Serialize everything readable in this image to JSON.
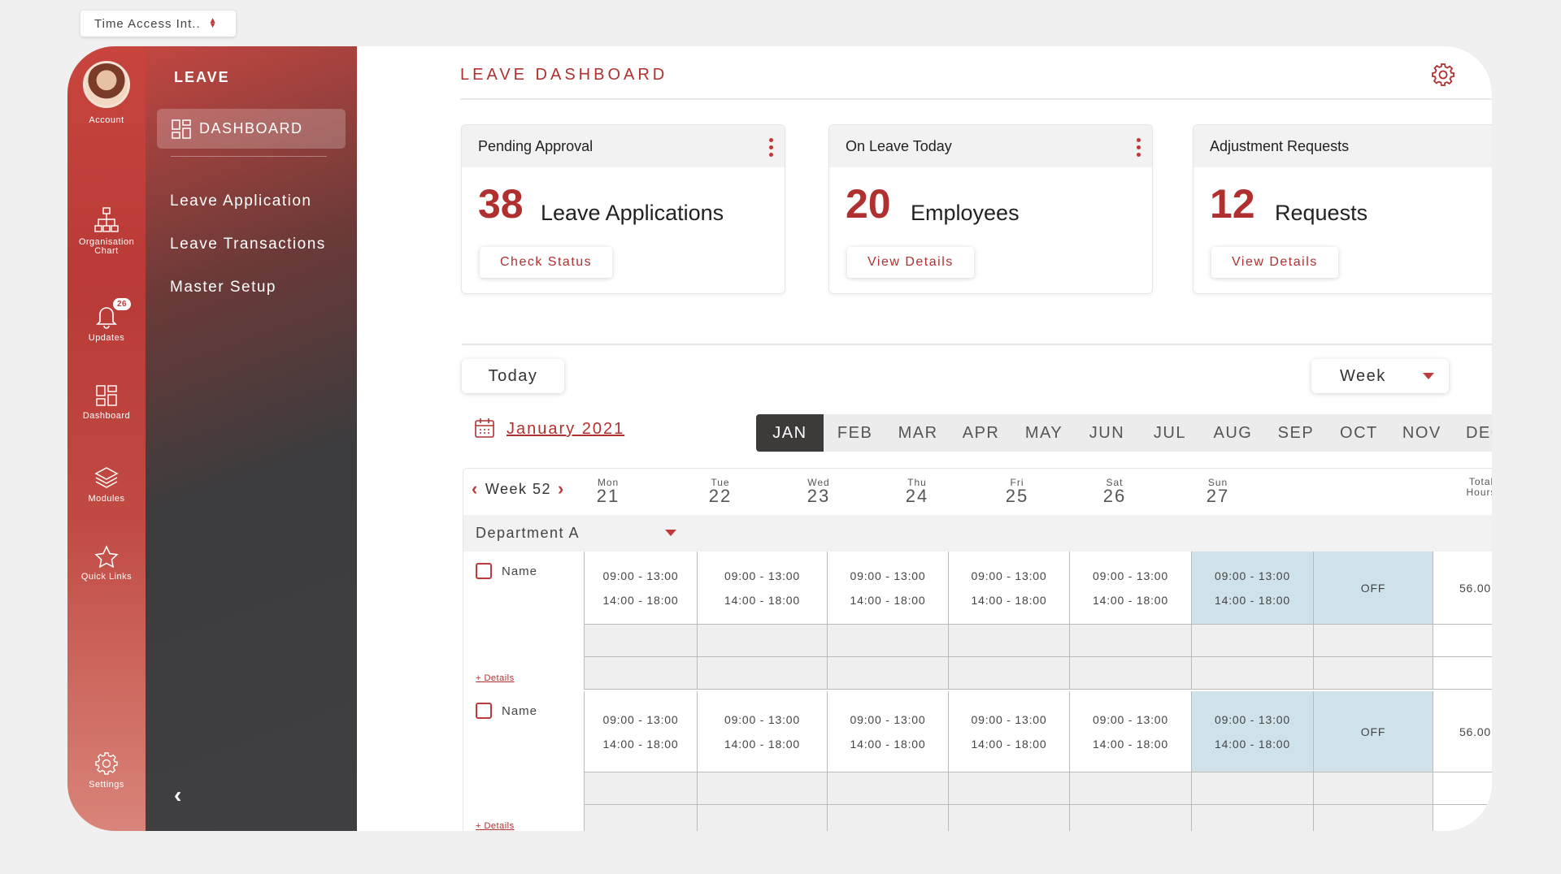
{
  "app_switcher": {
    "label": "Time Access Int.."
  },
  "rail": {
    "account": "Account",
    "org_chart_line1": "Organisation",
    "org_chart_line2": "Chart",
    "updates": "Updates",
    "updates_badge": "26",
    "dashboard": "Dashboard",
    "modules": "Modules",
    "quick_links": "Quick Links",
    "settings": "Settings"
  },
  "menu": {
    "title": "LEAVE",
    "active": "DASHBOARD",
    "links": [
      "Leave Application",
      "Leave Transactions",
      "Master Setup"
    ]
  },
  "page": {
    "title": "LEAVE DASHBOARD"
  },
  "cards": [
    {
      "title": "Pending Approval",
      "number": "38",
      "unit": "Leave Applications",
      "button": "Check Status"
    },
    {
      "title": "On Leave Today",
      "number": "20",
      "unit": "Employees",
      "button": "View Details"
    },
    {
      "title": "Adjustment Requests",
      "number": "12",
      "unit": "Requests",
      "button": "View Details"
    }
  ],
  "calendar": {
    "today": "Today",
    "view": "Week",
    "month_label": "January 2021",
    "months": [
      "JAN",
      "FEB",
      "MAR",
      "APR",
      "MAY",
      "JUN",
      "JUL",
      "AUG",
      "SEP",
      "OCT",
      "NOV",
      "DEC"
    ],
    "active_month": "JAN",
    "week_label": "Week 52",
    "days": [
      {
        "name": "Mon",
        "date": "21"
      },
      {
        "name": "Tue",
        "date": "22"
      },
      {
        "name": "Wed",
        "date": "23"
      },
      {
        "name": "Thu",
        "date": "24"
      },
      {
        "name": "Fri",
        "date": "25"
      },
      {
        "name": "Sat",
        "date": "26"
      },
      {
        "name": "Sun",
        "date": "27"
      }
    ],
    "total_label_1": "Total",
    "total_label_2": "Hours",
    "department": "Department A",
    "employees": [
      {
        "name": "Name",
        "details": "+ Details",
        "shift_am": "09:00 - 13:00",
        "shift_pm": "14:00 - 18:00",
        "sun": "OFF",
        "total": "56.00"
      },
      {
        "name": "Name",
        "details": "+ Details",
        "shift_am": "09:00 - 13:00",
        "shift_pm": "14:00 - 18:00",
        "sun": "OFF",
        "total": "56.00"
      }
    ]
  },
  "colors": {
    "accent": "#b0302f",
    "highlight": "#cfe2ea",
    "sidebar_dark": "#3c3c3e"
  }
}
